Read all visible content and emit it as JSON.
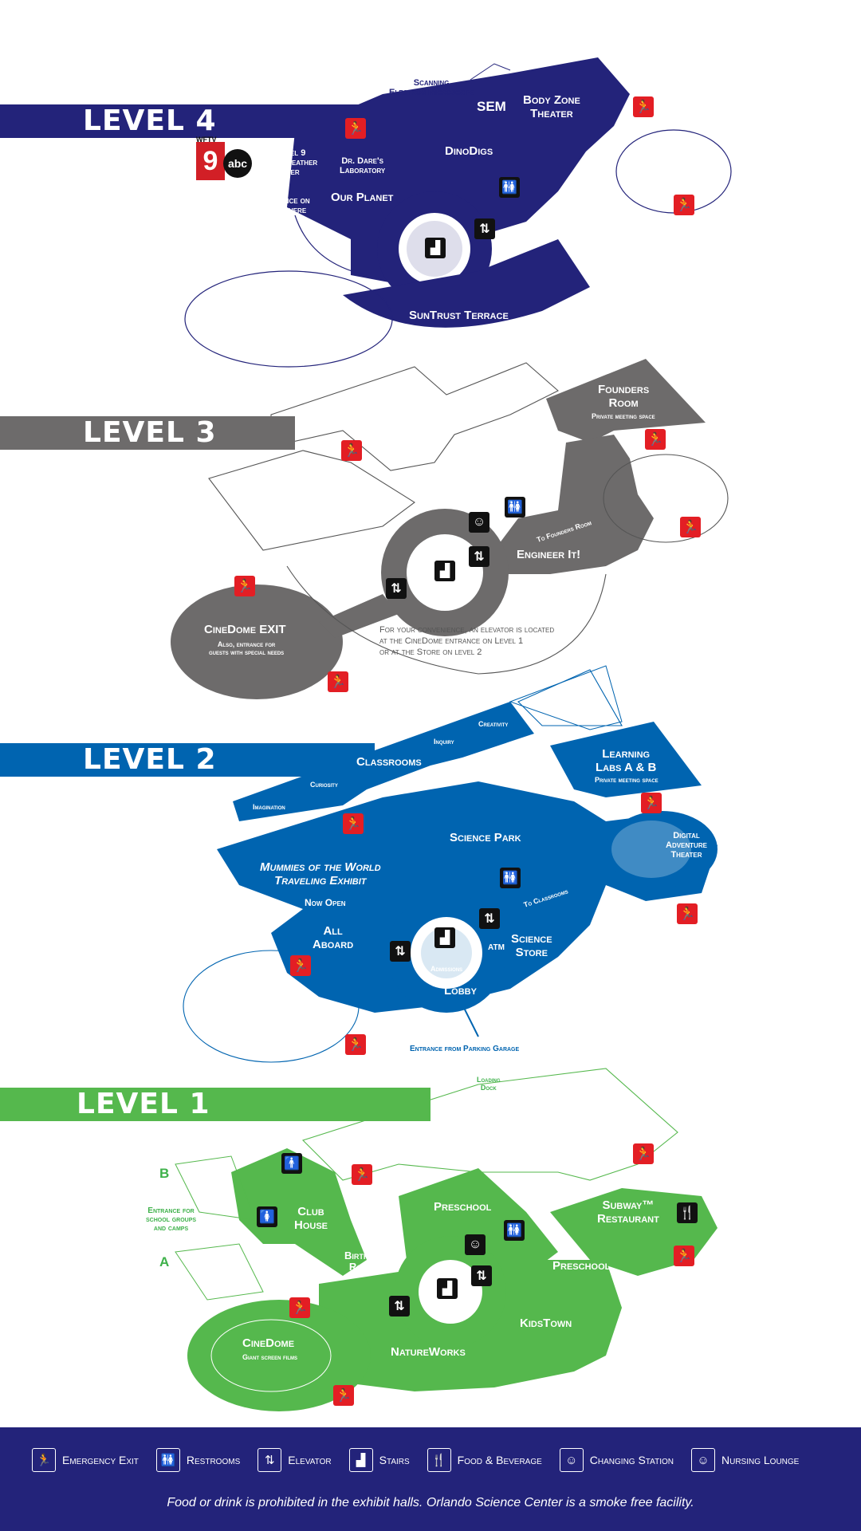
{
  "levels": {
    "level4": {
      "title": "LEVEL 4",
      "color": "#23237a",
      "labels": {
        "scanning": "Scanning\nElectron Microscope",
        "sem": "SEM",
        "body_zone": "Body Zone\nTheater",
        "dinodigs": "DinoDigs",
        "channel9": "Channel 9\nSevere Weather\nCenter",
        "dr_dare": "Dr. Dare's\nLaboratory",
        "sos": "Science on\na Sphere",
        "our_planet": "Our Planet",
        "suntrust": "SunTrust Terrace",
        "wftv": "WFTV",
        "nine": "9",
        "abc": "abc"
      }
    },
    "level3": {
      "title": "LEVEL 3",
      "color": "#6d6b6b",
      "labels": {
        "founders": "Founders\nRoom",
        "founders_sub": "Private meeting space",
        "to_founders": "To Founders Room",
        "engineer": "Engineer It!",
        "cinedome_exit": "CineDome EXIT",
        "cinedome_exit_sub": "Also, entrance for\nguests with special needs",
        "note": "For your convenience, an elevator is located\nat the CineDome entrance on Level 1\nor at the Store on level 2"
      }
    },
    "level2": {
      "title": "LEVEL 2",
      "color": "#0064b0",
      "labels": {
        "creativity": "Creativity",
        "inquiry": "Inquiry",
        "classrooms": "Classrooms",
        "curiosity": "Curiosity",
        "imagination": "Imagination",
        "learning_labs": "Learning\nLabs A & B",
        "learning_labs_sub": "Private meeting space",
        "science_park": "Science Park",
        "digital_theater": "Digital\nAdventure\nTheater",
        "mummies": "Mummies of the World\nTraveling Exhibit",
        "now_open": "Now Open",
        "to_classrooms": "To Classrooms",
        "all_aboard": "All\nAboard",
        "atm": "ATM",
        "science_store": "Science\nStore",
        "admissions": "Admissions",
        "lobby": "Lobby",
        "parking": "Entrance from Parking Garage"
      }
    },
    "level1": {
      "title": "LEVEL 1",
      "color": "#55b84d",
      "labels": {
        "loading_dock": "Loading\nDock",
        "b": "B",
        "a": "A",
        "school_entrance": "Entrance for\nschool groups\nand camps",
        "club_house": "Club\nHouse",
        "preschool_top": "Preschool",
        "subway": "Subway™\nRestaurant",
        "birthday": "Birthday\nRooms",
        "preschool_right": "Preschool",
        "kidstown": "KidsTown",
        "cinedome": "CineDome",
        "cinedome_sub": "Giant screen films",
        "natureworks": "NatureWorks"
      }
    }
  },
  "legend": {
    "items": [
      {
        "icon": "emergency-exit-icon",
        "label": "Emergency Exit"
      },
      {
        "icon": "restrooms-icon",
        "label": "Restrooms"
      },
      {
        "icon": "elevator-icon",
        "label": "Elevator"
      },
      {
        "icon": "stairs-icon",
        "label": "Stairs"
      },
      {
        "icon": "food-beverage-icon",
        "label": "Food & Beverage"
      },
      {
        "icon": "changing-station-icon",
        "label": "Changing Station"
      },
      {
        "icon": "nursing-lounge-icon",
        "label": "Nursing Lounge"
      }
    ],
    "note": "Food or drink is prohibited in the exhibit halls. Orlando Science Center is a smoke free facility."
  }
}
